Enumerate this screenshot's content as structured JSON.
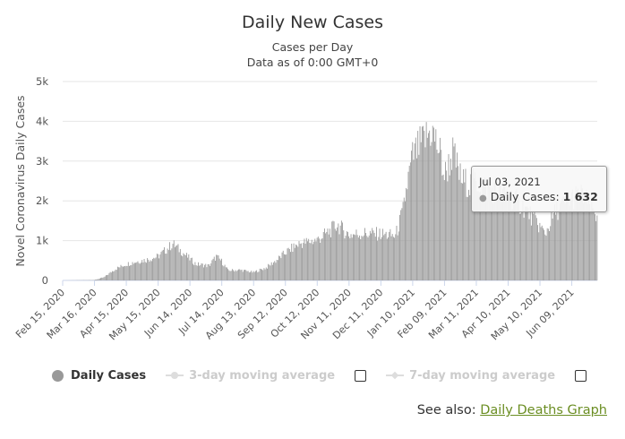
{
  "chart_data": {
    "type": "bar",
    "title": "Daily New Cases",
    "subtitle": [
      "Cases per Day",
      "Data as of 0:00 GMT+0"
    ],
    "ylabel": "Novel Coronavirus Daily Cases",
    "xlabel": "",
    "ylim": [
      0,
      5000
    ],
    "yticks": [
      {
        "value": 0,
        "label": "0"
      },
      {
        "value": 1000,
        "label": "1k"
      },
      {
        "value": 2000,
        "label": "2k"
      },
      {
        "value": 3000,
        "label": "3k"
      },
      {
        "value": 4000,
        "label": "4k"
      },
      {
        "value": 5000,
        "label": "5k"
      }
    ],
    "xticks": [
      "Feb 15, 2020",
      "Mar 16, 2020",
      "Apr 15, 2020",
      "May 15, 2020",
      "Jun 14, 2020",
      "Jul 14, 2020",
      "Aug 13, 2020",
      "Sep 12, 2020",
      "Oct 12, 2020",
      "Nov 11, 2020",
      "Dec 11, 2020",
      "Jan 10, 2021",
      "Feb 09, 2021",
      "Mar 11, 2021",
      "Apr 10, 2021",
      "May 10, 2021",
      "Jun 09, 2021"
    ],
    "x_start": "Feb 15, 2020",
    "x_end": "Jul 03, 2021",
    "series": [
      {
        "name": "Daily Cases",
        "color": "#999999",
        "anchors": [
          [
            "Feb 15, 2020",
            0
          ],
          [
            "Mar 16, 2020",
            10
          ],
          [
            "Mar 25, 2020",
            80
          ],
          [
            "Apr 05, 2020",
            300
          ],
          [
            "Apr 15, 2020",
            420
          ],
          [
            "Apr 25, 2020",
            490
          ],
          [
            "May 05, 2020",
            540
          ],
          [
            "May 15, 2020",
            620
          ],
          [
            "May 25, 2020",
            850
          ],
          [
            "May 29, 2020",
            950
          ],
          [
            "Jun 05, 2020",
            780
          ],
          [
            "Jun 14, 2020",
            560
          ],
          [
            "Jun 20, 2020",
            420
          ],
          [
            "Jul 02, 2020",
            380
          ],
          [
            "Jul 09, 2020",
            620
          ],
          [
            "Jul 14, 2020",
            500
          ],
          [
            "Jul 20, 2020",
            260
          ],
          [
            "Aug 01, 2020",
            270
          ],
          [
            "Aug 13, 2020",
            210
          ],
          [
            "Aug 25, 2020",
            330
          ],
          [
            "Sep 05, 2020",
            550
          ],
          [
            "Sep 12, 2020",
            720
          ],
          [
            "Sep 25, 2020",
            950
          ],
          [
            "Oct 12, 2020",
            1050
          ],
          [
            "Oct 25, 2020",
            1300
          ],
          [
            "Oct 31, 2020",
            1450
          ],
          [
            "Nov 11, 2020",
            1180
          ],
          [
            "Nov 25, 2020",
            1220
          ],
          [
            "Dec 11, 2020",
            1200
          ],
          [
            "Dec 25, 2020",
            1150
          ],
          [
            "Jan 01, 2021",
            1800
          ],
          [
            "Jan 05, 2021",
            2500
          ],
          [
            "Jan 10, 2021",
            3200
          ],
          [
            "Jan 20, 2021",
            3600
          ],
          [
            "Jan 28, 2021",
            3900
          ],
          [
            "Feb 05, 2021",
            3300
          ],
          [
            "Feb 09, 2021",
            2700
          ],
          [
            "Feb 17, 2021",
            3300
          ],
          [
            "Feb 25, 2021",
            2600
          ],
          [
            "Mar 05, 2021",
            2500
          ],
          [
            "Mar 11, 2021",
            2550
          ],
          [
            "Mar 25, 2021",
            2350
          ],
          [
            "Apr 10, 2021",
            2250
          ],
          [
            "Apr 25, 2021",
            1900
          ],
          [
            "May 10, 2021",
            1400
          ],
          [
            "May 15, 2021",
            1200
          ],
          [
            "May 25, 2021",
            1800
          ],
          [
            "Jun 09, 2021",
            2150
          ],
          [
            "Jun 20, 2021",
            2200
          ],
          [
            "Jul 03, 2021",
            1632
          ]
        ]
      },
      {
        "name": "3-day moving average",
        "visible": false
      },
      {
        "name": "7-day moving average",
        "visible": false
      }
    ],
    "tooltip": {
      "date": "Jul 03, 2021",
      "series": "Daily Cases",
      "value": 1632,
      "value_label": "1 632"
    },
    "grid": true
  },
  "legend": {
    "daily": "Daily Cases",
    "ma3": "3-day moving average",
    "ma7": "7-day moving average"
  },
  "tooltip": {
    "date": "Jul 03, 2021",
    "label": "Daily Cases:",
    "value": "1 632"
  },
  "see_also": {
    "prefix": "See also:",
    "link": "Daily Deaths Graph"
  }
}
